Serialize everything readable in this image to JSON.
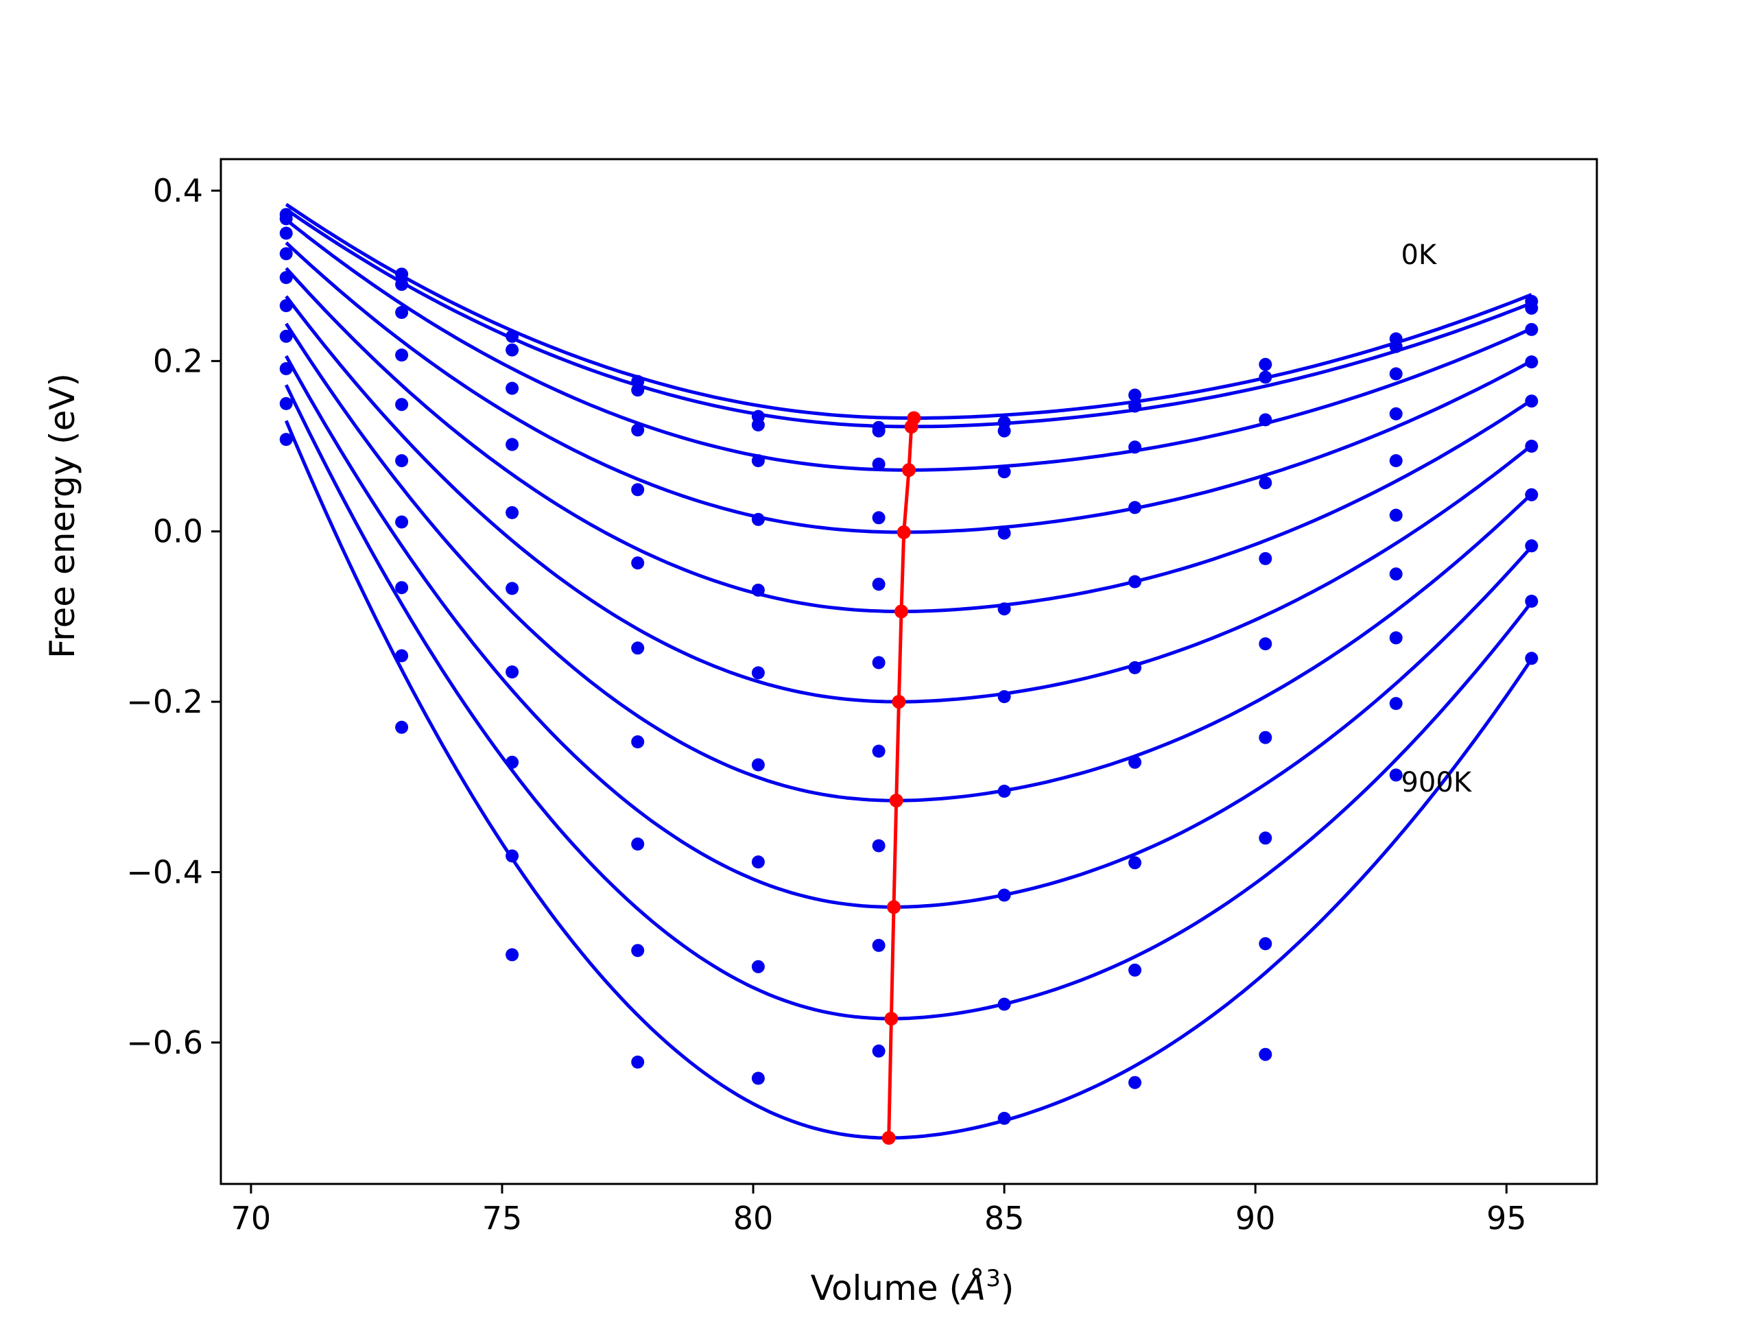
{
  "chart_data": {
    "type": "line",
    "xlabel": "Volume (",
    "xlabel_unit": "Å",
    "xlabel_exp": "3",
    "xlabel_close": ")",
    "ylabel": "Free energy (eV)",
    "xlim": [
      69.4,
      96.8
    ],
    "ylim": [
      -0.766,
      0.437
    ],
    "xticks": [
      {
        "value": 70,
        "label": "70"
      },
      {
        "value": 75,
        "label": "75"
      },
      {
        "value": 80,
        "label": "80"
      },
      {
        "value": 85,
        "label": "85"
      },
      {
        "value": 90,
        "label": "90"
      },
      {
        "value": 95,
        "label": "95"
      }
    ],
    "yticks": [
      {
        "value": 0.4,
        "label": "0.4"
      },
      {
        "value": 0.2,
        "label": "0.2"
      },
      {
        "value": 0.0,
        "label": "0.0"
      },
      {
        "value": -0.2,
        "label": "−0.2"
      },
      {
        "value": -0.4,
        "label": "−0.4"
      },
      {
        "value": -0.6,
        "label": "−0.6"
      }
    ],
    "annotations": [
      {
        "text": "0K",
        "x": 92.9,
        "y": 0.325
      },
      {
        "text": "900K",
        "x": 92.9,
        "y": -0.294
      }
    ],
    "curve_x_range": [
      70.7,
      95.5
    ],
    "volumes": [
      70.7,
      73.0,
      75.2,
      77.7,
      80.1,
      82.5,
      85.0,
      87.6,
      90.2,
      92.8,
      95.5
    ],
    "series": [
      {
        "x0": 83.2,
        "e0": 0.133,
        "left": 0.384,
        "right": 0.278,
        "points": [
          0.372,
          0.302,
          0.229,
          0.176,
          0.135,
          0.122,
          0.128,
          0.16,
          0.196,
          0.226,
          0.27
        ]
      },
      {
        "x0": 83.15,
        "e0": 0.123,
        "left": 0.378,
        "right": 0.268,
        "points": [
          0.367,
          0.29,
          0.213,
          0.166,
          0.125,
          0.118,
          0.118,
          0.147,
          0.181,
          0.217,
          0.262
        ]
      },
      {
        "x0": 83.1,
        "e0": 0.072,
        "left": 0.366,
        "right": 0.238,
        "points": [
          0.35,
          0.257,
          0.168,
          0.119,
          0.083,
          0.079,
          0.07,
          0.099,
          0.131,
          0.185,
          0.237
        ]
      },
      {
        "x0": 83.0,
        "e0": -0.001,
        "left": 0.339,
        "right": 0.2,
        "points": [
          0.326,
          0.207,
          0.102,
          0.049,
          0.014,
          0.016,
          -0.002,
          0.028,
          0.057,
          0.138,
          0.199
        ]
      },
      {
        "x0": 82.95,
        "e0": -0.094,
        "left": 0.309,
        "right": 0.154,
        "points": [
          0.298,
          0.149,
          0.022,
          -0.037,
          -0.069,
          -0.062,
          -0.091,
          -0.059,
          -0.032,
          0.083,
          0.153
        ]
      },
      {
        "x0": 82.9,
        "e0": -0.2,
        "left": 0.276,
        "right": 0.101,
        "points": [
          0.265,
          0.083,
          -0.067,
          -0.137,
          -0.166,
          -0.154,
          -0.194,
          -0.16,
          -0.132,
          0.019,
          0.1
        ]
      },
      {
        "x0": 82.85,
        "e0": -0.316,
        "left": 0.244,
        "right": 0.044,
        "points": [
          0.229,
          0.011,
          -0.165,
          -0.247,
          -0.274,
          -0.258,
          -0.305,
          -0.271,
          -0.242,
          -0.05,
          0.043
        ]
      },
      {
        "x0": 82.8,
        "e0": -0.441,
        "left": 0.206,
        "right": -0.018,
        "points": [
          0.191,
          -0.066,
          -0.271,
          -0.367,
          -0.388,
          -0.369,
          -0.427,
          -0.389,
          -0.36,
          -0.125,
          -0.017
        ]
      },
      {
        "x0": 82.75,
        "e0": -0.572,
        "left": 0.172,
        "right": -0.083,
        "points": [
          0.15,
          -0.146,
          -0.381,
          -0.492,
          -0.511,
          -0.486,
          -0.555,
          -0.515,
          -0.484,
          -0.202,
          -0.082
        ]
      },
      {
        "x0": 82.7,
        "e0": -0.712,
        "left": 0.13,
        "right": -0.15,
        "points": [
          0.108,
          -0.23,
          -0.497,
          -0.623,
          -0.642,
          -0.61,
          -0.689,
          -0.647,
          -0.614,
          -0.286,
          -0.149
        ]
      }
    ],
    "minimum_line": {
      "x": [
        83.2,
        83.15,
        83.1,
        83.0,
        82.95,
        82.9,
        82.85,
        82.8,
        82.75,
        82.7
      ],
      "y": [
        0.133,
        0.123,
        0.072,
        -0.001,
        -0.094,
        -0.2,
        -0.316,
        -0.441,
        -0.572,
        -0.712
      ]
    },
    "curve_color": "#0000ee",
    "min_color": "#ff0000",
    "grid": false,
    "legend": "none"
  }
}
